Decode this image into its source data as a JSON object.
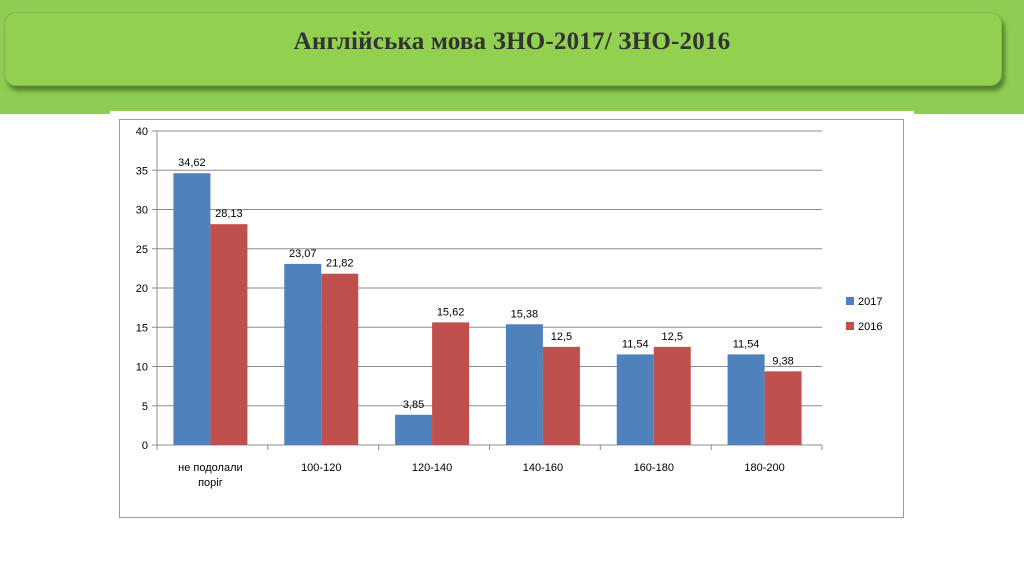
{
  "slide": {
    "title": "Англійська мова  ЗНО-2017/ ЗНО-2016"
  },
  "colors": {
    "banner": "#92d050",
    "series_2017": "#4f81bd",
    "series_2016": "#c0504d"
  },
  "chart_data": {
    "type": "bar",
    "title": "",
    "xlabel": "",
    "ylabel": "",
    "ylim": [
      0,
      40
    ],
    "yticks": [
      0,
      5,
      10,
      15,
      20,
      25,
      30,
      35,
      40
    ],
    "grid": true,
    "legend_position": "right",
    "categories": [
      [
        "не подолали",
        "поріг"
      ],
      [
        "100-120"
      ],
      [
        "120-140"
      ],
      [
        "140-160"
      ],
      [
        "160-180"
      ],
      [
        "180-200"
      ]
    ],
    "series": [
      {
        "name": "2017",
        "color": "#4f81bd",
        "values": [
          34.62,
          23.07,
          3.85,
          15.38,
          11.54,
          11.54
        ],
        "labels": [
          "34,62",
          "23,07",
          "3,85",
          "15,38",
          "11,54",
          "11,54"
        ]
      },
      {
        "name": "2016",
        "color": "#c0504d",
        "values": [
          28.13,
          21.82,
          15.62,
          12.5,
          12.5,
          9.38
        ],
        "labels": [
          "28,13",
          "21,82",
          "15,62",
          "12,5",
          "12,5",
          "9,38"
        ]
      }
    ]
  }
}
